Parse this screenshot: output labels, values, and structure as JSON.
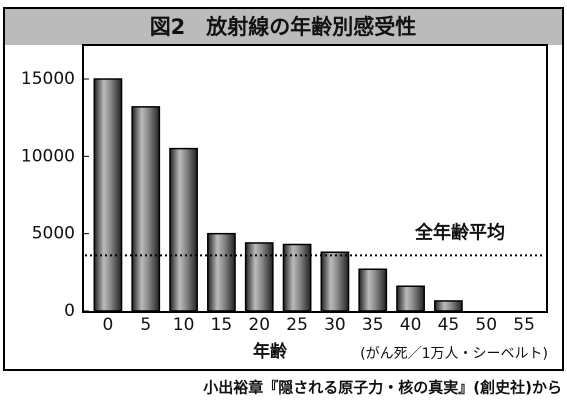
{
  "chart_data": {
    "type": "bar",
    "title": "図2　放射線の年齢別感受性",
    "x_label": "年齢",
    "unit_note": "(がん死／1万人・シーベルト)",
    "source": "小出裕章『隠される原子力・核の真実』(創史社)から",
    "categories": [
      "0",
      "5",
      "10",
      "15",
      "20",
      "25",
      "30",
      "35",
      "40",
      "45",
      "50",
      "55"
    ],
    "values": [
      15000,
      13200,
      10500,
      5000,
      4400,
      4300,
      3800,
      2700,
      1600,
      650,
      0,
      0
    ],
    "average": {
      "label": "全年齢平均",
      "value": 3600
    },
    "color": "#555555",
    "ylim": [
      0,
      17200
    ],
    "yticks": [
      0,
      5000,
      10000,
      15000
    ]
  }
}
